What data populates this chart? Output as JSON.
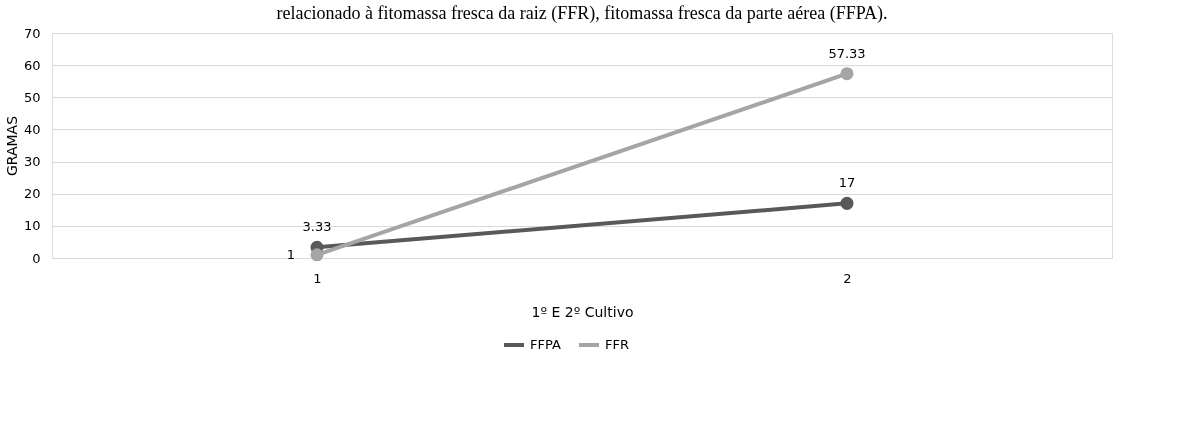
{
  "chart_data": {
    "type": "line",
    "title": "relacionado à fitomassa fresca da raiz (FFR), fitomassa fresca da parte aérea (FFPA).",
    "xlabel": "1º E 2º Cultivo",
    "ylabel": "GRAMAS",
    "categories": [
      "1",
      "2"
    ],
    "series": [
      {
        "name": "FFPA",
        "color": "#595959",
        "values": [
          3.33,
          17
        ]
      },
      {
        "name": "FFR",
        "color": "#a5a5a5",
        "values": [
          1,
          57.33
        ]
      }
    ],
    "ylim": [
      0,
      70
    ],
    "yticks": [
      0,
      10,
      20,
      30,
      40,
      50,
      60,
      70
    ],
    "grid": "y",
    "legend": "bottom",
    "marker": "circle",
    "line_style": "solid",
    "data_labels": true
  }
}
